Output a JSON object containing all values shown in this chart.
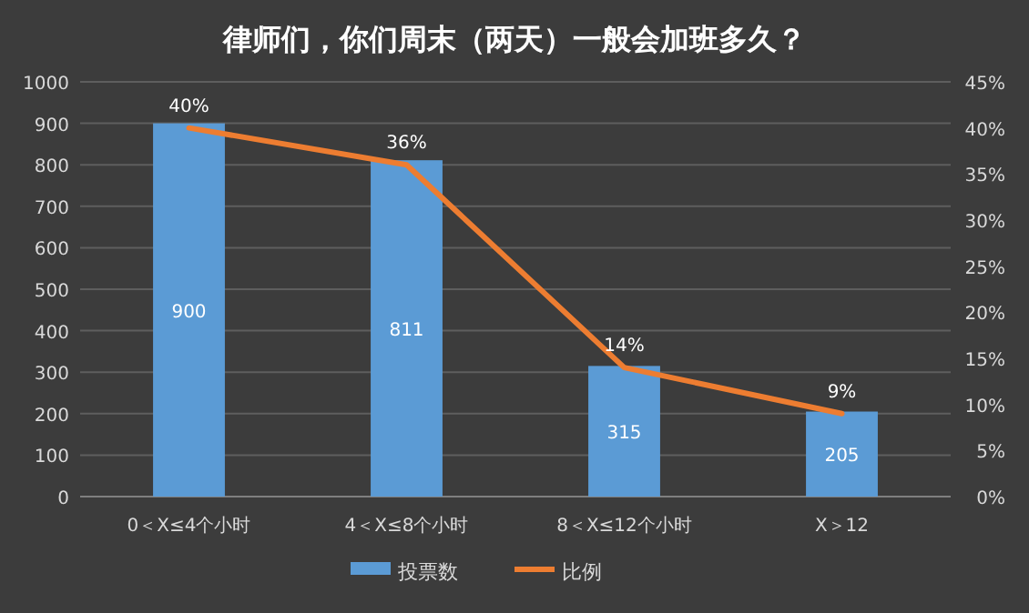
{
  "chart_data": {
    "type": "bar",
    "title": "律师们，你们周末（两天）一般会加班多久？",
    "categories": [
      "0＜X≤4个小时",
      "4＜X≤8个小时",
      "8＜X≤12个小时",
      "X＞12"
    ],
    "series": [
      {
        "name": "投票数",
        "color": "#5b9bd5",
        "values": [
          900,
          811,
          315,
          205
        ],
        "value_labels": [
          "900",
          "811",
          "315",
          "205"
        ]
      },
      {
        "name": "比例",
        "type": "line",
        "axis": "y2",
        "color": "#ed7d31",
        "values": [
          40,
          36,
          14,
          9
        ],
        "value_labels": [
          "40%",
          "36%",
          "14%",
          "9%"
        ]
      }
    ],
    "ylim": [
      0,
      1000
    ],
    "yticks": [
      0,
      100,
      200,
      300,
      400,
      500,
      600,
      700,
      800,
      900,
      1000
    ],
    "y2lim": [
      0,
      45
    ],
    "y2ticks": [
      {
        "value": 0,
        "label": "0%"
      },
      {
        "value": 5,
        "label": "5%"
      },
      {
        "value": 10,
        "label": "10%"
      },
      {
        "value": 15,
        "label": "15%"
      },
      {
        "value": 20,
        "label": "20%"
      },
      {
        "value": 25,
        "label": "25%"
      },
      {
        "value": 30,
        "label": "30%"
      },
      {
        "value": 35,
        "label": "35%"
      },
      {
        "value": 40,
        "label": "40%"
      },
      {
        "value": 45,
        "label": "45%"
      }
    ],
    "grid": "y",
    "legend": "bottom",
    "marker": "none",
    "line_style": "solid"
  }
}
